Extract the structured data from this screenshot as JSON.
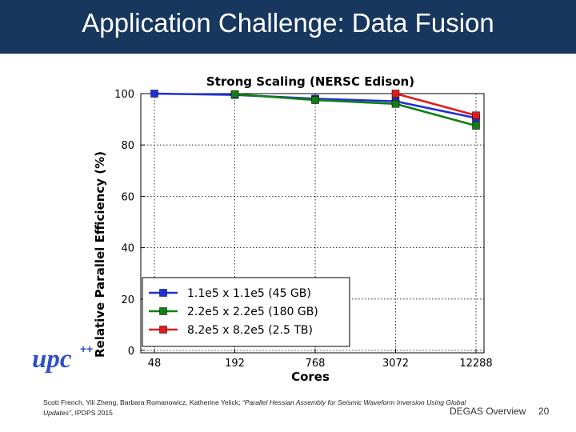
{
  "slide": {
    "title": "Application Challenge: Data Fusion",
    "logo_text": "upc",
    "logo_superscript": "++",
    "citation": {
      "authors": "Scott French, Yili Zheng, Barbara Romanowicz, Katherine Yelick; ",
      "paper": "“Parallel Hessian Assembly for Seismic Waveform Inversion Using Global Updates”",
      "venue": ", IPDPS 2015"
    },
    "footer": "DEGAS Overview",
    "page_number": "20",
    "title_bar_color": "#17375e"
  },
  "chart_data": {
    "type": "line",
    "title": "Strong Scaling (NERSC Edison)",
    "xlabel": "Cores",
    "ylabel": "Relative Parallel Efficiency (%)",
    "categories": [
      "48",
      "192",
      "768",
      "3072",
      "12288"
    ],
    "ylim": [
      0,
      100
    ],
    "yticks": [
      "0",
      "20",
      "40",
      "60",
      "80",
      "100"
    ],
    "grid": true,
    "legend_position": "bottom-left",
    "series": [
      {
        "name": "1.1e5 x 1.1e5 (45 GB)",
        "color": "#1f2fd6",
        "values": [
          100,
          99.5,
          98,
          97,
          90.5
        ]
      },
      {
        "name": "2.2e5 x 2.2e5 (180 GB)",
        "color": "#137f13",
        "values": [
          null,
          99.8,
          97.5,
          96,
          87.5
        ]
      },
      {
        "name": "8.2e5 x 8.2e5 (2.5 TB)",
        "color": "#e01b1b",
        "values": [
          null,
          null,
          null,
          100,
          91.5
        ]
      }
    ]
  }
}
